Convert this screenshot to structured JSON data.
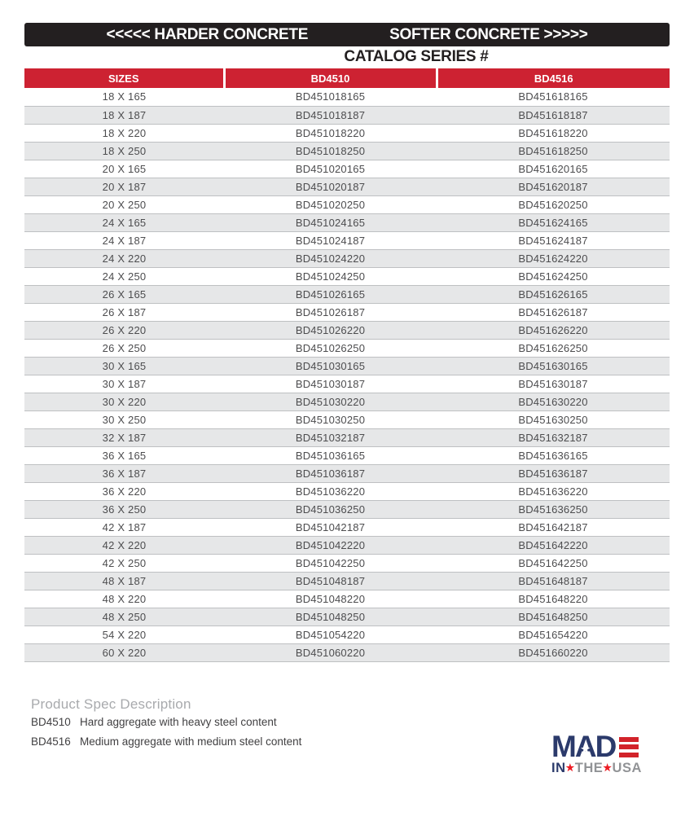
{
  "header_bar": {
    "left_label": "<<<<< HARDER CONCRETE",
    "right_label": "SOFTER CONCRETE >>>>>"
  },
  "catalog_title": "CATALOG SERIES #",
  "table": {
    "columns": [
      "SIZES",
      "BD4510",
      "BD4516"
    ],
    "rows": [
      [
        "18 X 165",
        "BD451018165",
        "BD451618165"
      ],
      [
        "18 X 187",
        "BD451018187",
        "BD451618187"
      ],
      [
        "18 X 220",
        "BD451018220",
        "BD451618220"
      ],
      [
        "18 X 250",
        "BD451018250",
        "BD451618250"
      ],
      [
        "20 X 165",
        "BD451020165",
        "BD451620165"
      ],
      [
        "20 X 187",
        "BD451020187",
        "BD451620187"
      ],
      [
        "20 X 250",
        "BD451020250",
        "BD451620250"
      ],
      [
        "24 X 165",
        "BD451024165",
        "BD451624165"
      ],
      [
        "24 X 187",
        "BD451024187",
        "BD451624187"
      ],
      [
        "24 X 220",
        "BD451024220",
        "BD451624220"
      ],
      [
        "24 X 250",
        "BD451024250",
        "BD451624250"
      ],
      [
        "26 X 165",
        "BD451026165",
        "BD451626165"
      ],
      [
        "26 X 187",
        "BD451026187",
        "BD451626187"
      ],
      [
        "26 X 220",
        "BD451026220",
        "BD451626220"
      ],
      [
        "26 X 250",
        "BD451026250",
        "BD451626250"
      ],
      [
        "30 X 165",
        "BD451030165",
        "BD451630165"
      ],
      [
        "30 X 187",
        "BD451030187",
        "BD451630187"
      ],
      [
        "30 X 220",
        "BD451030220",
        "BD451630220"
      ],
      [
        "30 X 250",
        "BD451030250",
        "BD451630250"
      ],
      [
        "32 X 187",
        "BD451032187",
        "BD451632187"
      ],
      [
        "36 X 165",
        "BD451036165",
        "BD451636165"
      ],
      [
        "36 X 187",
        "BD451036187",
        "BD451636187"
      ],
      [
        "36 X 220",
        "BD451036220",
        "BD451636220"
      ],
      [
        "36 X 250",
        "BD451036250",
        "BD451636250"
      ],
      [
        "42 X 187",
        "BD451042187",
        "BD451642187"
      ],
      [
        "42 X 220",
        "BD451042220",
        "BD451642220"
      ],
      [
        "42 X 250",
        "BD451042250",
        "BD451642250"
      ],
      [
        "48 X 187",
        "BD451048187",
        "BD451648187"
      ],
      [
        "48 X 220",
        "BD451048220",
        "BD451648220"
      ],
      [
        "48 X 250",
        "BD451048250",
        "BD451648250"
      ],
      [
        "54 X 220",
        "BD451054220",
        "BD451654220"
      ],
      [
        "60 X 220",
        "BD451060220",
        "BD451660220"
      ]
    ]
  },
  "footer": {
    "spec_title": "Product Spec Description",
    "specs": [
      {
        "code": "BD4510",
        "description": "Hard aggregate with heavy steel content"
      },
      {
        "code": "BD4516",
        "description": "Medium aggregate with medium steel content"
      }
    ]
  },
  "logo": {
    "top_letters": {
      "m": "M",
      "a": "A",
      "d": "D"
    },
    "star": "★",
    "bottom": {
      "in": "IN",
      "star1": "★",
      "the": "THE",
      "star2": "★",
      "usa": "USA"
    }
  },
  "colors": {
    "bar_black": "#231F20",
    "header_red": "#CD2232",
    "row_shade_gray": "#E6E7E8",
    "row_border_gray": "#BEC0C2",
    "body_text": "#4D4D4F",
    "spec_title_gray": "#A8AAAD",
    "logo_navy": "#2B3A6B",
    "logo_red": "#D2232A",
    "logo_gray": "#919396"
  }
}
